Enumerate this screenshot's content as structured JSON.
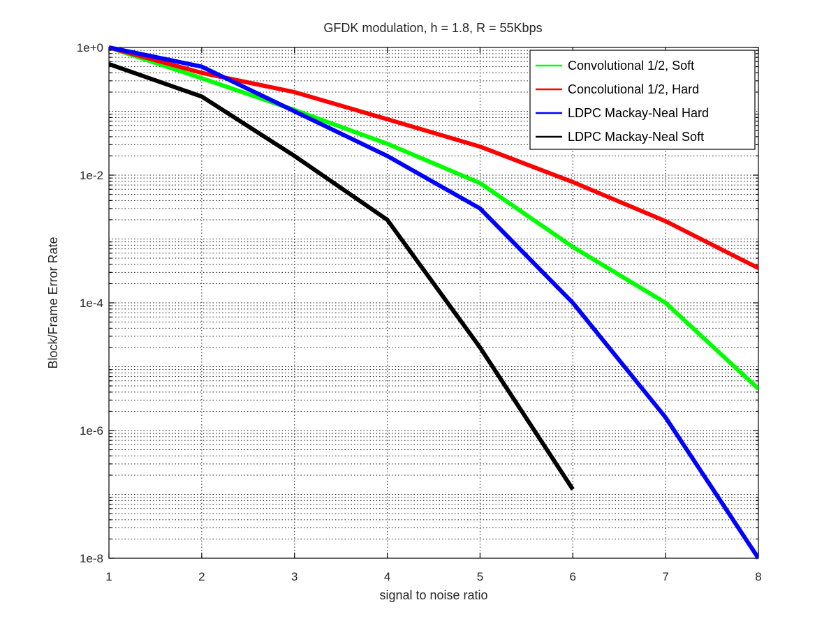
{
  "chart_data": {
    "type": "line",
    "title": "GFDK modulation, h = 1.8, R = 55Kbps",
    "xlabel": "signal to noise ratio",
    "ylabel": "Block/Frame Error Rate",
    "xlim": [
      1,
      8
    ],
    "ylim": [
      1e-08,
      1
    ],
    "yscale": "log",
    "grid": true,
    "legend_position": "top-right",
    "x_ticks": [
      1,
      2,
      3,
      4,
      5,
      6,
      7,
      8
    ],
    "x_tick_labels": [
      "1",
      "2",
      "3",
      "4",
      "5",
      "6",
      "7",
      "8"
    ],
    "y_ticks": [
      1e-08,
      1e-06,
      0.0001,
      0.01,
      1
    ],
    "y_tick_labels": [
      "1e-8",
      "1e-6",
      "1e-4",
      "1e-2",
      "1e+0"
    ],
    "series": [
      {
        "name": "Convolutional 1/2, Soft",
        "color": "#00ff00",
        "x": [
          1,
          2,
          3,
          4,
          5,
          6,
          7,
          8
        ],
        "y": [
          1.0,
          0.33,
          0.105,
          0.031,
          0.0075,
          0.00075,
          0.0001,
          4.5e-06
        ]
      },
      {
        "name": "Concolutional 1/2, Hard",
        "color": "#ff0000",
        "x": [
          1,
          2,
          3,
          4,
          5,
          6,
          7,
          8
        ],
        "y": [
          1.0,
          0.4,
          0.2,
          0.075,
          0.028,
          0.0078,
          0.0019,
          0.00035
        ]
      },
      {
        "name": "LDPC Mackay-Neal Hard",
        "color": "#0000ff",
        "x": [
          1,
          2,
          3,
          4,
          5,
          6,
          7,
          8
        ],
        "y": [
          1.0,
          0.5,
          0.1,
          0.02,
          0.003,
          0.0001,
          1.6e-06,
          1e-08
        ]
      },
      {
        "name": "LDPC Mackay-Neal Soft",
        "color": "#000000",
        "x": [
          1,
          2,
          3,
          4,
          5,
          6
        ],
        "y": [
          0.55,
          0.17,
          0.02,
          0.002,
          2e-05,
          1.2e-07
        ]
      }
    ]
  }
}
